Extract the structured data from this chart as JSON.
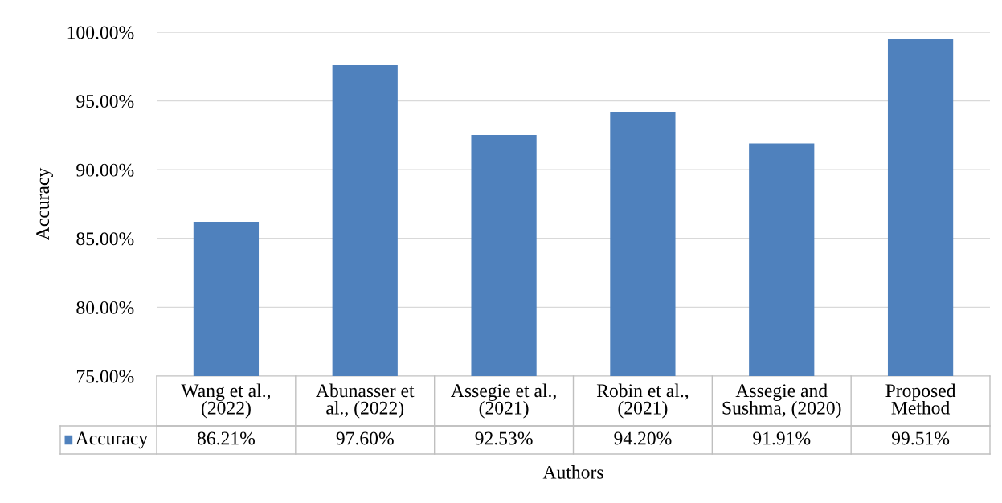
{
  "chart_data": {
    "type": "bar",
    "categories": [
      "Wang et al.,\n(2022)",
      "Abunasser et\nal., (2022)",
      "Assegie et al.,\n(2021)",
      "Robin et al.,\n(2021)",
      "Assegie and\nSushma, (2020)",
      "Proposed\nMethod"
    ],
    "series": [
      {
        "name": "Accuracy",
        "color": "#4f81bd",
        "values": [
          86.21,
          97.6,
          92.53,
          94.2,
          91.91,
          99.51
        ],
        "value_labels": [
          "86.21%",
          "97.60%",
          "92.53%",
          "94.20%",
          "91.91%",
          "99.51%"
        ]
      }
    ],
    "xlabel": "Authors",
    "ylabel": "Accuracy",
    "ylim": [
      75,
      100
    ],
    "yticks": [
      {
        "value": 75,
        "label": "75.00%"
      },
      {
        "value": 80,
        "label": "80.00%"
      },
      {
        "value": 85,
        "label": "85.00%"
      },
      {
        "value": 90,
        "label": "90.00%"
      },
      {
        "value": 95,
        "label": "95.00%"
      },
      {
        "value": 100,
        "label": "100.00%"
      }
    ],
    "grid": "y",
    "legend": "bottom"
  }
}
